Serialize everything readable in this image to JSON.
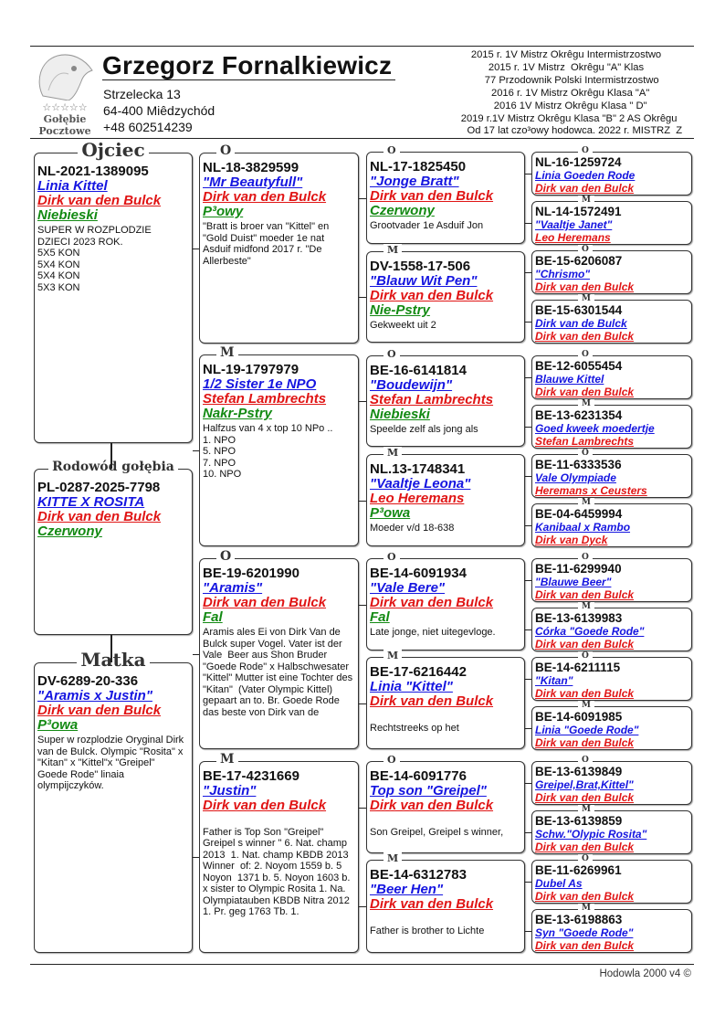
{
  "header": {
    "title": "Grzegorz Fornalkiewicz",
    "address": [
      "Strzelecka 13",
      "64-400 Miêdzychód",
      "+48 602514239"
    ],
    "logo_text": [
      "Gołębie",
      "Pocztowe"
    ],
    "logo_stars": "☆☆☆☆☆",
    "achievements": [
      "2015 r. 1V Mistrz Okrêgu Intermistrzostwo",
      "2015 r. 1V Mistrz  Okrêgu \"A\" Klas",
      "    77 Przodownik Polski Intermistrzostwo",
      "   2016 r. 1V Mistrz Okrêgu Klasa \"A\"",
      "   2016 1V Mistrz Okrêgu Klasa \" D\"",
      "  2019 r.1V Mistrz Okrêgu Klasa \"B\" 2 AS Okrêgu",
      "      Od 17 lat czo³owy hodowca. 2022 r. MISTRZ  Z"
    ]
  },
  "labels": {
    "father": "Ojciec",
    "subject": "Rodowód gołębia",
    "mother": "Matka",
    "male": "O",
    "female": "M"
  },
  "colors": {
    "name": "#1515e0",
    "breeder": "#e01515",
    "color": "#138a13"
  },
  "col1": [
    {
      "ring": "NL-2021-1389095",
      "name": "Linia Kittel",
      "breeder": "Dirk van den Bulck",
      "color": "Niebieski",
      "note": "SUPER W ROZPLODZIE\nDZIECI 2023 ROK.\n5X5 KON\n5X4 KON\n5X4 KON\n5X3 KON"
    },
    {
      "ring": "PL-0287-2025-7798",
      "name": "KITTE X ROSITA",
      "breeder": "Dirk van den Bulck",
      "color": "Czerwony",
      "note": ""
    },
    {
      "ring": "DV-6289-20-336",
      "name": "\"Aramis x Justin\"",
      "breeder": "Dirk van den Bulck",
      "color": "P³owa",
      "note": "Super w rozplodzie Oryginal Dirk van de Bulck. Olympic \"Rosita\" x \"Kitan\" x \"Kittel\"x \"Greipel\"  Goede Rode\" linaia olympijczyków."
    }
  ],
  "col2": [
    {
      "ring": "NL-18-3829599",
      "name": "\"Mr Beautyfull\"",
      "breeder": "Dirk van den Bulck",
      "color": "P³owy",
      "note": "\"Bratt is broer van \"Kittel\" en \"Gold Duist\" moeder 1e nat Asduif midfond 2017 r. \"De Allerbeste\""
    },
    {
      "ring": "NL-19-1797979",
      "name": "1/2 Sister 1e NPO",
      "breeder": "Stefan Lambrechts",
      "color": "Nakr-Pstry",
      "note": "Halfzus van 4 x top 10 NPo ..\n1. NPO\n5. NPO\n7. NPO\n10. NPO"
    },
    {
      "ring": "BE-19-6201990",
      "name": "\"Aramis\"",
      "breeder": "Dirk van den Bulck",
      "color": "Fal",
      "note": "Aramis ales Ei von Dirk Van de Bulck super Vogel. Vater ist der Vale  Beer aus Shon Bruder \"Goede Rode\" x Halbschwesater \"Kittel\" Mutter ist eine Tochter des \"Kitan\"  (Vater Olympic Kittel) gepaart an to. Br. Goede Rode das beste von Dirk van de"
    },
    {
      "ring": "BE-17-4231669",
      "name": "\"Justin\"",
      "breeder": "Dirk van den Bulck",
      "color": "",
      "note": "\nFather is Top Son \"Greipel\" Greipel s winner \" 6. Nat. champ 2013  1. Nat. champ KBDB 2013 Winner  of: 2. Noyom 1559 b. 5 Noyon  1371 b. 5. Noyon 1603 b. x sister to Olympic Rosita 1. Na. Olympiatauben KBDB Nitra 2012 1. Pr. geg 1763 Tb. 1."
    }
  ],
  "col3": [
    {
      "ring": "NL-17-1825450",
      "name": "\"Jonge Bratt\"",
      "breeder": "Dirk van den Bulck",
      "color": "Czerwony",
      "note": "Grootvader 1e Asduif Jon"
    },
    {
      "ring": "DV-1558-17-506",
      "name": "\"Blauw Wit Pen\"",
      "breeder": "Dirk van den Bulck",
      "color": "Nie-Pstry",
      "note": "Gekweekt uit 2"
    },
    {
      "ring": "BE-16-6141814",
      "name": "\"Boudewijn\"",
      "breeder": "Stefan Lambrechts",
      "color": "Niebieski",
      "note": "Speelde zelf als jong als"
    },
    {
      "ring": "NL.13-1748341",
      "name": "\"Vaaltje Leona\"",
      "breeder": "Leo Heremans",
      "color": "P³owa",
      "note": "Moeder v/d 18-638"
    },
    {
      "ring": "BE-14-6091934",
      "name": "\"Vale Bere\"",
      "breeder": "Dirk van den Bulck",
      "color": "Fal",
      "note": "Late jonge, niet uitegevloge."
    },
    {
      "ring": "BE-17-6216442",
      "name": "Linia \"Kittel\"",
      "breeder": "Dirk van den Bulck",
      "color": "",
      "note": "\nRechtstreeks op het"
    },
    {
      "ring": "BE-14-6091776",
      "name": "Top son \"Greipel\"",
      "breeder": "Dirk van den Bulck",
      "color": "",
      "note": "\nSon Greipel, Greipel s winner,"
    },
    {
      "ring": "BE-14-6312783",
      "name": "\"Beer Hen\"",
      "breeder": "Dirk van den Bulck",
      "color": "",
      "note": "\nFather is brother to Lichte"
    }
  ],
  "col4": [
    {
      "ring": "NL-16-1259724",
      "name": "Linia Goeden Rode",
      "breeder": "Dirk van den Bulck"
    },
    {
      "ring": "NL-14-1572491",
      "name": "\"Vaaltje Janet\"",
      "breeder": "Leo Heremans"
    },
    {
      "ring": "BE-15-6206087",
      "name": "\"Chrismo\"",
      "breeder": "Dirk van den Bulck"
    },
    {
      "ring": "BE-15-6301544",
      "name": "Dirk van de Bulck",
      "breeder": "Dirk van den Bulck"
    },
    {
      "ring": "BE-12-6055454",
      "name": "Blauwe Kittel",
      "breeder": "Dirk van den Bulck"
    },
    {
      "ring": "BE-13-6231354",
      "name": "Goed kweek moedertje",
      "breeder": "Stefan Lambrechts"
    },
    {
      "ring": "BE-11-6333536",
      "name": "Vale Olympiade",
      "breeder": "Heremans x Ceusters"
    },
    {
      "ring": "BE-04-6459994",
      "name": "Kanibaal x Rambo",
      "breeder": "Dirk van Dyck"
    },
    {
      "ring": "BE-11-6299940",
      "name": "\"Blauwe Beer\"",
      "breeder": "Dirk van den Bulck"
    },
    {
      "ring": "BE-13-6139983",
      "name": "Córka \"Goede Rode\"",
      "breeder": "Dirk van den Bulck"
    },
    {
      "ring": "BE-14-6211115",
      "name": "\"Kitan\"",
      "breeder": "Dirk van den Bulck"
    },
    {
      "ring": "BE-14-6091985",
      "name": "Linia \"Goede Rode\"",
      "breeder": "Dirk van den Bulck"
    },
    {
      "ring": "BE-13-6139849",
      "name": "Greipel,Brat,Kittel\"",
      "breeder": "Dirk van den Bulck"
    },
    {
      "ring": "BE-13-6139859",
      "name": "Schw.\"Olypic Rosita\"",
      "breeder": "Dirk van den Bulck"
    },
    {
      "ring": "BE-11-6269961",
      "name": "Dubel As",
      "breeder": "Dirk van den Bulck"
    },
    {
      "ring": "BE-13-6198863",
      "name": "Syn \"Goede Rode\"",
      "breeder": "Dirk van den Bulck"
    }
  ],
  "footer": "Hodowla 2000 v4 ©"
}
